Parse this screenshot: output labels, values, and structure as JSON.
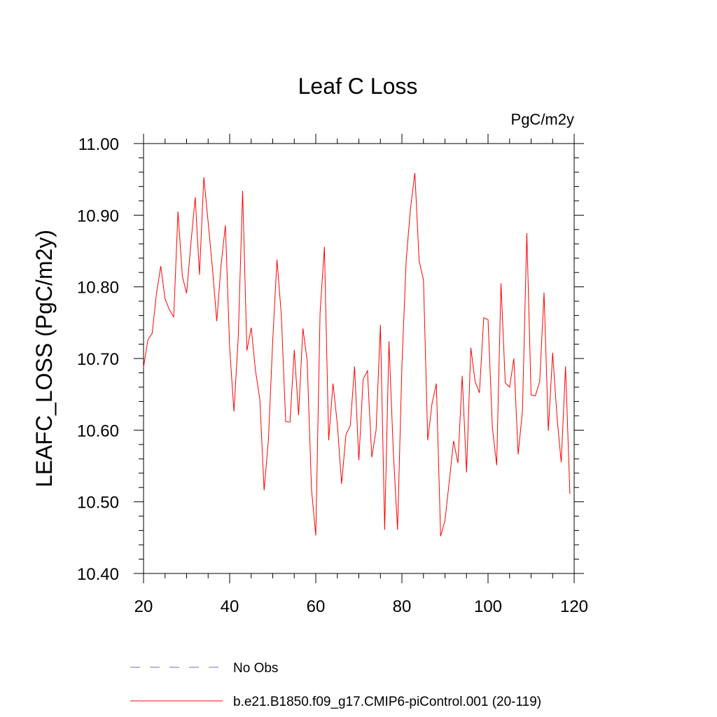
{
  "chart_data": {
    "type": "line",
    "title": "Leaf C Loss",
    "units_label": "PgC/m2y",
    "ylabel": "LEAFC_LOSS  (PgC/m2y)",
    "xlabel": "",
    "xlim": [
      20,
      120
    ],
    "ylim": [
      10.4,
      11.0
    ],
    "x_ticks": [
      20,
      40,
      60,
      80,
      100,
      120
    ],
    "x_tick_labels": [
      "20",
      "40",
      "60",
      "80",
      "100",
      "120"
    ],
    "y_ticks": [
      10.4,
      10.5,
      10.6,
      10.7,
      10.8,
      10.9,
      11.0
    ],
    "y_tick_labels": [
      "10.40",
      "10.50",
      "10.60",
      "10.70",
      "10.80",
      "10.90",
      "11.00"
    ],
    "grid": false,
    "legend": [
      {
        "label": "No Obs",
        "color": "#7b68c8",
        "style": "dashed"
      },
      {
        "label": "b.e21.B1850.f09_g17.CMIP6-piControl.001 (20-119)",
        "color": "#ff0000",
        "style": "solid"
      }
    ],
    "series": [
      {
        "name": "b.e21.B1850.f09_g17.CMIP6-piControl.001 (20-119)",
        "color": "#ff0000",
        "x": [
          20,
          21,
          22,
          23,
          24,
          25,
          26,
          27,
          28,
          29,
          30,
          31,
          32,
          33,
          34,
          35,
          36,
          37,
          38,
          39,
          40,
          41,
          42,
          43,
          44,
          45,
          46,
          47,
          48,
          49,
          50,
          51,
          52,
          53,
          54,
          55,
          56,
          57,
          58,
          59,
          60,
          61,
          62,
          63,
          64,
          65,
          66,
          67,
          68,
          69,
          70,
          71,
          72,
          73,
          74,
          75,
          76,
          77,
          78,
          79,
          80,
          81,
          82,
          83,
          84,
          85,
          86,
          87,
          88,
          89,
          90,
          91,
          92,
          93,
          94,
          95,
          96,
          97,
          98,
          99,
          100,
          101,
          102,
          103,
          104,
          105,
          106,
          107,
          108,
          109,
          110,
          111,
          112,
          113,
          114,
          115,
          116,
          117,
          118,
          119
        ],
        "values": [
          10.688,
          10.726,
          10.735,
          10.79,
          10.829,
          10.783,
          10.768,
          10.758,
          10.905,
          10.815,
          10.791,
          10.86,
          10.925,
          10.817,
          10.953,
          10.89,
          10.826,
          10.752,
          10.83,
          10.886,
          10.715,
          10.626,
          10.73,
          10.934,
          10.711,
          10.743,
          10.683,
          10.643,
          10.516,
          10.587,
          10.725,
          10.838,
          10.76,
          10.612,
          10.611,
          10.712,
          10.621,
          10.742,
          10.697,
          10.517,
          10.453,
          10.763,
          10.856,
          10.586,
          10.665,
          10.608,
          10.525,
          10.594,
          10.606,
          10.689,
          10.558,
          10.671,
          10.683,
          10.562,
          10.6,
          10.747,
          10.461,
          10.724,
          10.57,
          10.461,
          10.69,
          10.837,
          10.91,
          10.959,
          10.836,
          10.81,
          10.586,
          10.637,
          10.665,
          10.452,
          10.474,
          10.528,
          10.585,
          10.554,
          10.676,
          10.541,
          10.715,
          10.668,
          10.652,
          10.757,
          10.754,
          10.604,
          10.551,
          10.805,
          10.666,
          10.66,
          10.7,
          10.566,
          10.627,
          10.875,
          10.649,
          10.648,
          10.668,
          10.792,
          10.599,
          10.708,
          10.62,
          10.555,
          10.689,
          10.511
        ]
      }
    ]
  }
}
